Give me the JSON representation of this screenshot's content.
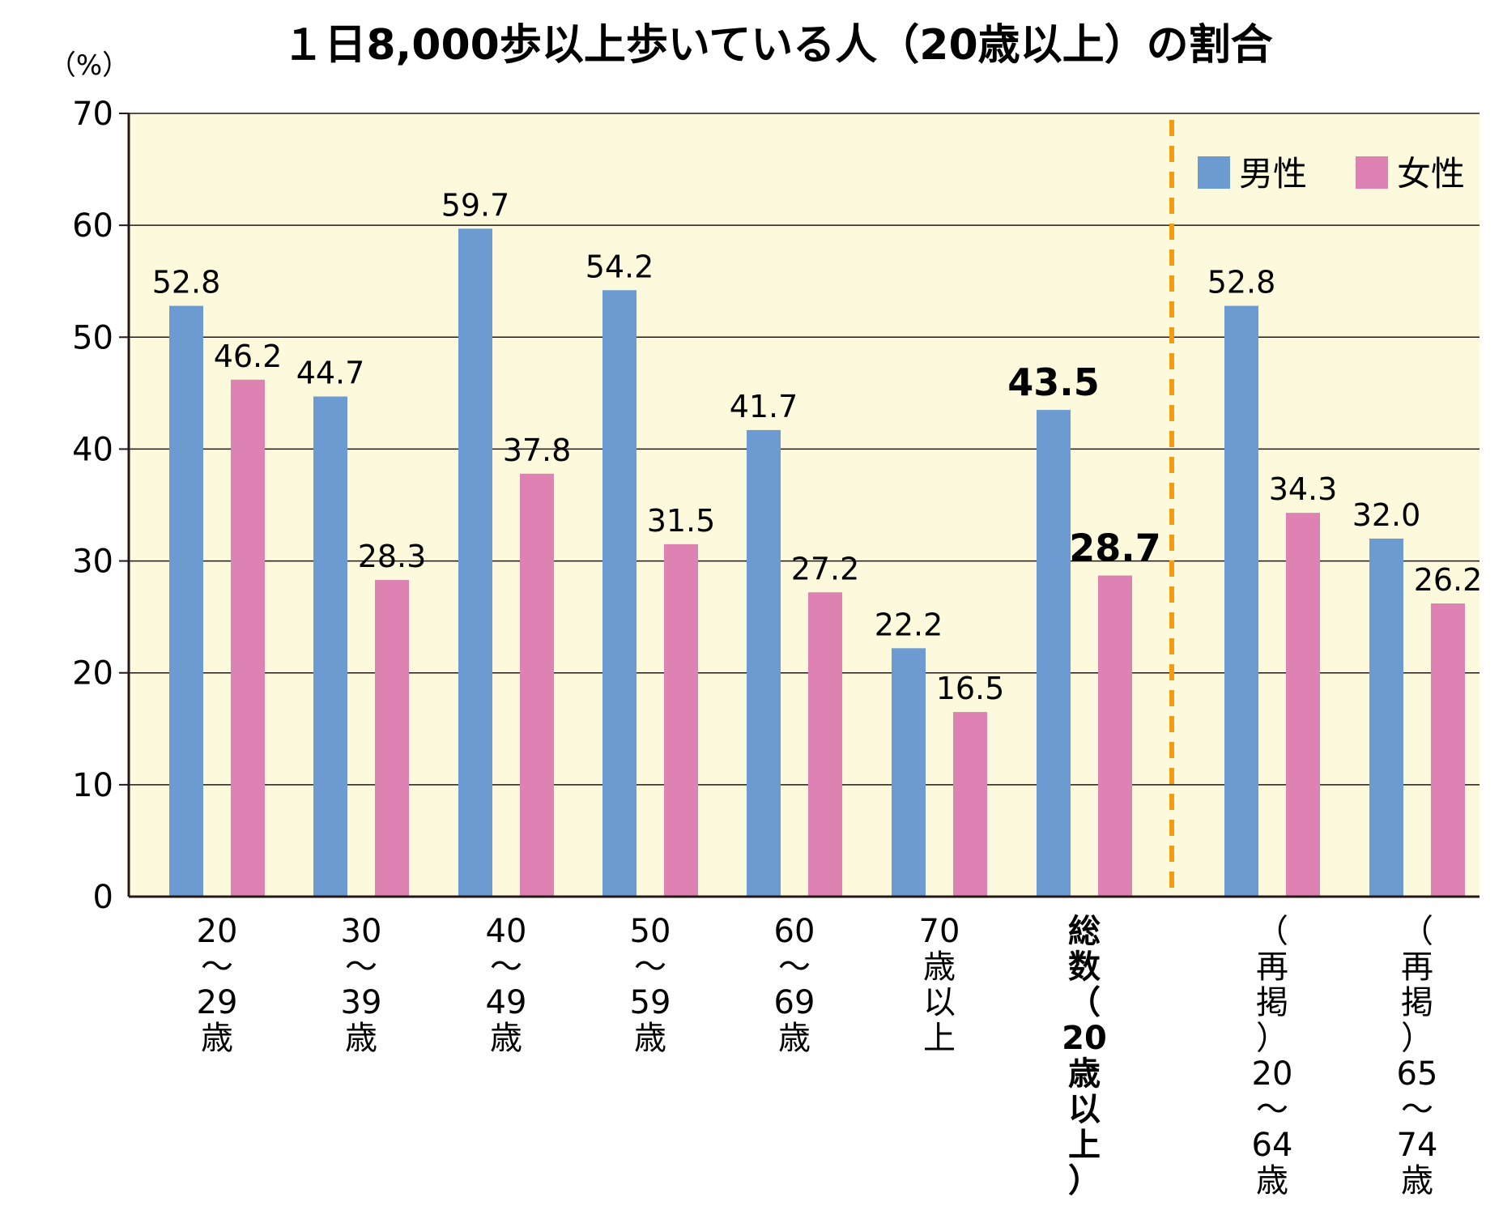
{
  "chart_data": {
    "type": "bar",
    "title": "１日8,000歩以上歩いている人（20歳以上）の割合",
    "ylabel": "（%）",
    "ylim": [
      0,
      70
    ],
    "yticks": [
      "0",
      "10",
      "20",
      "30",
      "40",
      "50",
      "60",
      "70"
    ],
    "categories": [
      [
        "20",
        "～",
        "29",
        "歳"
      ],
      [
        "30",
        "～",
        "39",
        "歳"
      ],
      [
        "40",
        "～",
        "49",
        "歳"
      ],
      [
        "50",
        "～",
        "59",
        "歳"
      ],
      [
        "60",
        "～",
        "69",
        "歳"
      ],
      [
        "70",
        "歳",
        "以",
        "上"
      ],
      [
        "総",
        "数",
        "（",
        "20",
        "歳",
        "以",
        "上",
        "）"
      ],
      [
        "（",
        "再",
        "掲",
        "）",
        "20",
        "～",
        "64",
        "歳"
      ],
      [
        "（",
        "再",
        "掲",
        "）",
        "65",
        "～",
        "74",
        "歳"
      ]
    ],
    "series": [
      {
        "name": "男性",
        "color": "#6b9bd1",
        "values": [
          52.8,
          44.7,
          59.7,
          54.2,
          41.7,
          22.2,
          43.5,
          52.8,
          32.0
        ],
        "labels": [
          "52.8",
          "44.7",
          "59.7",
          "54.2",
          "41.7",
          "22.2",
          "43.5",
          "52.8",
          "32.0"
        ]
      },
      {
        "name": "女性",
        "color": "#dd82b2",
        "values": [
          46.2,
          28.3,
          37.8,
          31.5,
          27.2,
          16.5,
          28.7,
          34.3,
          26.2
        ],
        "labels": [
          "46.2",
          "28.3",
          "37.8",
          "31.5",
          "27.2",
          "16.5",
          "28.7",
          "34.3",
          "26.2"
        ]
      }
    ],
    "highlight_category_index": 6,
    "divider_after_category_index": 6,
    "grid": true,
    "legend_position": "top-right",
    "background_color": "#fdf9dc",
    "divider_color": "#f39c12"
  }
}
